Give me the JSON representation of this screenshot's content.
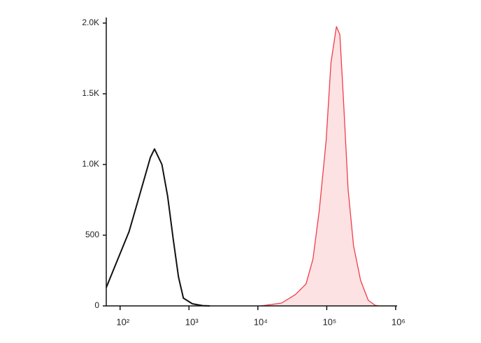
{
  "chart_data": {
    "type": "histogram",
    "xscale": "log",
    "xlim": [
      63,
      1050000
    ],
    "xticks": [
      {
        "value": 100,
        "label": "10²"
      },
      {
        "value": 1000,
        "label": "10³"
      },
      {
        "value": 10000,
        "label": "10⁴"
      },
      {
        "value": 100000,
        "label": "10⁵"
      },
      {
        "value": 1000000,
        "label": "10⁶"
      }
    ],
    "ylim": [
      0,
      2000
    ],
    "yticks": [
      0,
      500,
      {
        "value": 1000,
        "label": "1.0K"
      },
      {
        "value": 1500,
        "label": "1.5K"
      },
      {
        "value": 2000,
        "label": "2.0K"
      }
    ],
    "series": [
      {
        "color": "#111111",
        "fill": false,
        "x": [
          63,
          135,
          190,
          275,
          316,
          405,
          490,
          590,
          705,
          830,
          1120,
          1580,
          2000
        ],
        "values": [
          130,
          525,
          775,
          1050,
          1110,
          1000,
          775,
          475,
          205,
          55,
          15,
          2,
          0
        ]
      },
      {
        "color": "#f03c4a",
        "fill": "#fde2e4",
        "x": [
          11000,
          22000,
          35000,
          50000,
          63000,
          78000,
          98000,
          115000,
          138000,
          155000,
          174000,
          204000,
          245000,
          310000,
          400000,
          500000,
          560000
        ],
        "values": [
          0,
          20,
          80,
          155,
          330,
          675,
          1170,
          1720,
          1975,
          1920,
          1475,
          825,
          425,
          180,
          40,
          5,
          0
        ]
      }
    ]
  }
}
